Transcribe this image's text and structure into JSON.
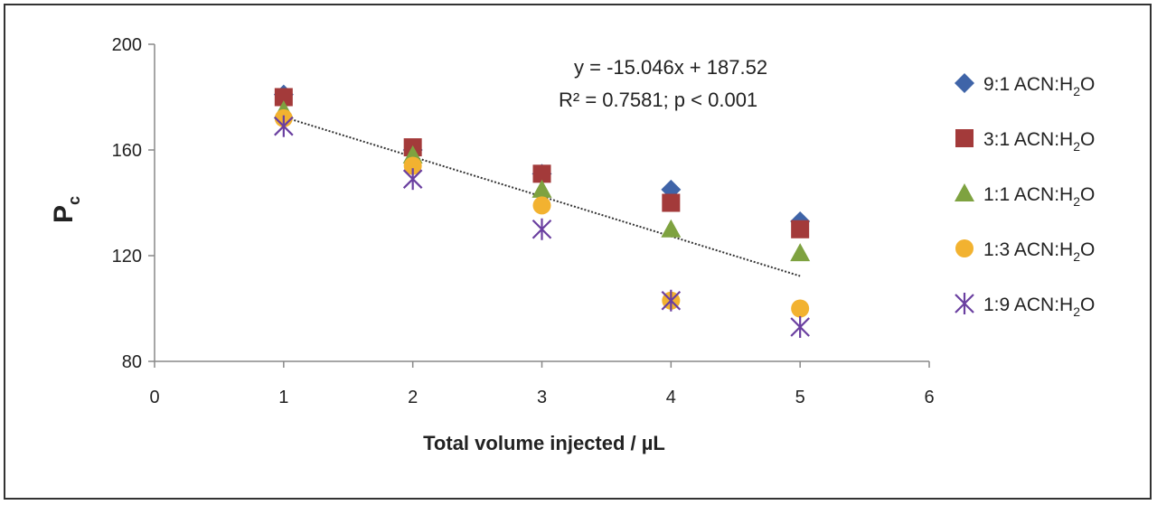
{
  "chart_data": {
    "type": "scatter",
    "title": "",
    "xlabel": "Total volume injected / µL",
    "ylabel_main": "P",
    "ylabel_sub": "c",
    "xlim": [
      0,
      6
    ],
    "ylim": [
      80,
      200
    ],
    "xticks": [
      "0",
      "1",
      "2",
      "3",
      "4",
      "5",
      "6"
    ],
    "yticks": [
      "80",
      "120",
      "160",
      "200"
    ],
    "legend_position": "right",
    "series": [
      {
        "name": "9:1 ACN:H",
        "sub": "2",
        "suffix": "O",
        "marker": "diamond",
        "color": "#3f64a8",
        "x": [
          1,
          2,
          3,
          4,
          5
        ],
        "y": [
          181,
          160,
          151,
          145,
          133
        ]
      },
      {
        "name": "3:1 ACN:H",
        "sub": "2",
        "suffix": "O",
        "marker": "square",
        "color": "#a33a3a",
        "x": [
          1,
          2,
          3,
          4,
          5
        ],
        "y": [
          180,
          161,
          151,
          140,
          130
        ]
      },
      {
        "name": "1:1 ACN:H",
        "sub": "2",
        "suffix": "O",
        "marker": "triangle",
        "color": "#7ea240",
        "x": [
          1,
          2,
          3,
          4,
          5
        ],
        "y": [
          175,
          158,
          145,
          130,
          121
        ]
      },
      {
        "name": "1:3 ACN:H",
        "sub": "2",
        "suffix": "O",
        "marker": "circle",
        "color": "#f2b230",
        "x": [
          1,
          2,
          3,
          4,
          5
        ],
        "y": [
          172,
          154,
          139,
          103,
          100
        ]
      },
      {
        "name": "1:9 ACN:H",
        "sub": "2",
        "suffix": "O",
        "marker": "star",
        "color": "#6a3fa0",
        "x": [
          1,
          2,
          3,
          4,
          5
        ],
        "y": [
          169,
          149,
          130,
          103,
          93
        ]
      }
    ],
    "trendline": {
      "slope": -15.046,
      "intercept": 187.52,
      "x_range": [
        1,
        5
      ],
      "color": "#333333",
      "style": "dotted"
    },
    "annotations": {
      "equation": "y = -15.046x + 187.52",
      "r_squared": "R² = 0.7581; p < 0.001"
    }
  }
}
